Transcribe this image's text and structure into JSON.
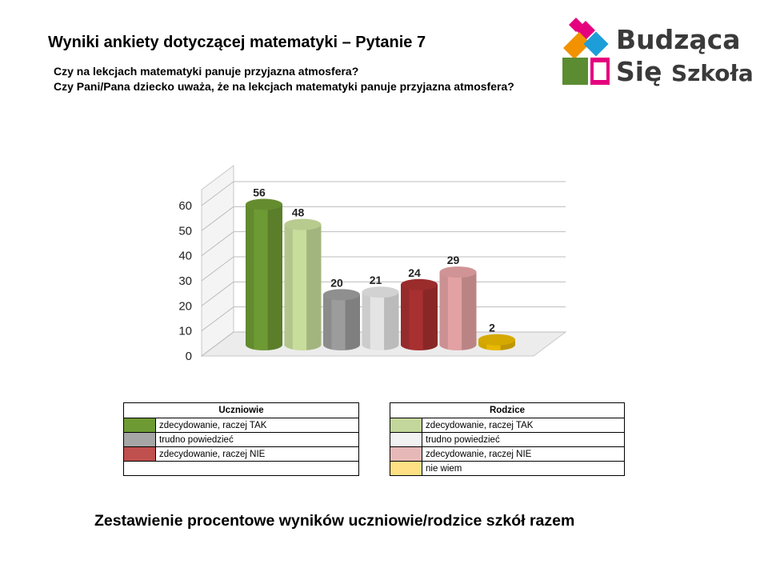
{
  "header": {
    "title": "Wyniki ankiety dotyczącej matematyki – Pytanie 7",
    "question_students": "Czy na lekcjach matematyki panuje przyjazna atmosfera?",
    "question_parents": "Czy Pani/Pana dziecko uważa, że na lekcjach matematyki panuje przyjazna atmosfera?"
  },
  "logo": {
    "line1": "Budząca",
    "line2_a": "Się",
    "line2_b": "Szkoła"
  },
  "chart_data": {
    "type": "bar",
    "style": "3d-cylinder",
    "categories": [
      "Uczniowie – zdecydowanie, raczej TAK",
      "Rodzice – zdecydowanie, raczej TAK",
      "Uczniowie – trudno powiedzieć",
      "Rodzice – trudno powiedzieć",
      "Uczniowie – zdecydowanie, raczej NIE",
      "Rodzice – zdecydowanie, raczej NIE",
      "Rodzice – nie wiem"
    ],
    "values": [
      56,
      48,
      20,
      21,
      24,
      29,
      2
    ],
    "data_labels": [
      "56",
      "48",
      "20",
      "21",
      "24",
      "29",
      "2"
    ],
    "colors": [
      "#6e9a34",
      "#c7dd9c",
      "#9c9c9c",
      "#e4e4e4",
      "#a83030",
      "#e3a1a3",
      "#e8b800"
    ],
    "ylim": [
      0,
      60
    ],
    "yticks": [
      "0",
      "10",
      "20",
      "30",
      "40",
      "50",
      "60"
    ],
    "grid": true,
    "title": "",
    "xlabel": "",
    "ylabel": ""
  },
  "legend_students": {
    "header": "Uczniowie",
    "items": [
      {
        "label": "zdecydowanie, raczej TAK",
        "color": "#6e9a34"
      },
      {
        "label": "trudno powiedzieć",
        "color": "#a6a6a6"
      },
      {
        "label": "zdecydowanie, raczej NIE",
        "color": "#c0504d"
      }
    ]
  },
  "legend_parents": {
    "header": "Rodzice",
    "items": [
      {
        "label": "zdecydowanie, raczej TAK",
        "color": "#c3d69b"
      },
      {
        "label": "trudno powiedzieć",
        "color": "#f2f2f2"
      },
      {
        "label": "zdecydowanie, raczej NIE",
        "color": "#e6b9b8"
      },
      {
        "label": "nie wiem",
        "color": "#ffe084"
      }
    ]
  },
  "footer": {
    "text": "Zestawienie procentowe wyników uczniowie/rodzice szkół razem"
  }
}
